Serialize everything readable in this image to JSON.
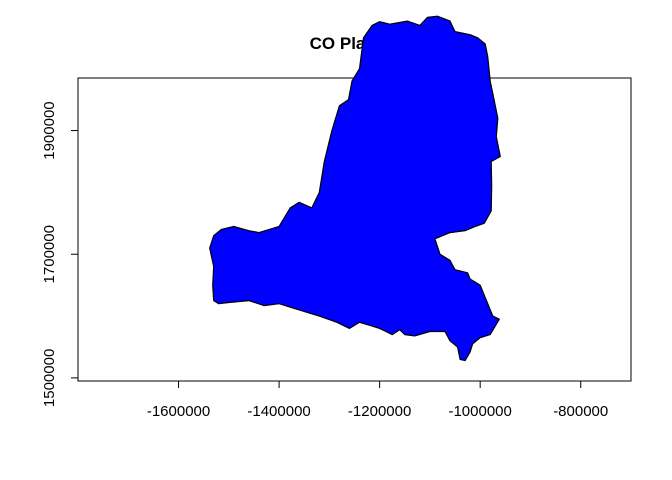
{
  "chart_data": {
    "type": "map",
    "title": "CO Plateau",
    "xlabel": "",
    "ylabel": "",
    "xlim": [
      -1800000,
      -700000
    ],
    "ylim": [
      1495000,
      1985000
    ],
    "x_ticks": [
      -1600000,
      -1400000,
      -1200000,
      -1000000,
      -800000
    ],
    "x_tick_labels": [
      "-1600000",
      "-1400000",
      "-1200000",
      "-1000000",
      "-800000"
    ],
    "y_ticks": [
      1500000,
      1700000,
      1900000
    ],
    "y_tick_labels": [
      "1500000",
      "1700000",
      "1900000"
    ],
    "grid": false,
    "fill_color": "#0000ff",
    "border_color": "#000000",
    "polygon": [
      [
        -1515000,
        1740000
      ],
      [
        -1490000,
        1745000
      ],
      [
        -1460000,
        1738000
      ],
      [
        -1440000,
        1735000
      ],
      [
        -1400000,
        1745000
      ],
      [
        -1378000,
        1775000
      ],
      [
        -1360000,
        1784000
      ],
      [
        -1335000,
        1775000
      ],
      [
        -1320000,
        1800000
      ],
      [
        -1310000,
        1850000
      ],
      [
        -1295000,
        1900000
      ],
      [
        -1280000,
        1940000
      ],
      [
        -1262000,
        1950000
      ],
      [
        -1255000,
        1980000
      ],
      [
        -1240000,
        2000000
      ],
      [
        -1232000,
        2050000
      ],
      [
        -1215000,
        2070000
      ],
      [
        -1200000,
        2076000
      ],
      [
        -1180000,
        2072000
      ],
      [
        -1145000,
        2077000
      ],
      [
        -1120000,
        2070000
      ],
      [
        -1105000,
        2083000
      ],
      [
        -1085000,
        2085000
      ],
      [
        -1060000,
        2077000
      ],
      [
        -1050000,
        2060000
      ],
      [
        -1020000,
        2055000
      ],
      [
        -1005000,
        2050000
      ],
      [
        -990000,
        2040000
      ],
      [
        -985000,
        2020000
      ],
      [
        -980000,
        1980000
      ],
      [
        -975000,
        1960000
      ],
      [
        -965000,
        1920000
      ],
      [
        -968000,
        1890000
      ],
      [
        -960000,
        1858000
      ],
      [
        -978000,
        1850000
      ],
      [
        -977000,
        1810000
      ],
      [
        -978000,
        1770000
      ],
      [
        -992000,
        1750000
      ],
      [
        -1010000,
        1745000
      ],
      [
        -1030000,
        1738000
      ],
      [
        -1060000,
        1735000
      ],
      [
        -1075000,
        1730000
      ],
      [
        -1090000,
        1725000
      ],
      [
        -1080000,
        1700000
      ],
      [
        -1060000,
        1690000
      ],
      [
        -1050000,
        1675000
      ],
      [
        -1025000,
        1670000
      ],
      [
        -1020000,
        1660000
      ],
      [
        -1010000,
        1655000
      ],
      [
        -1000000,
        1650000
      ],
      [
        -990000,
        1630000
      ],
      [
        -975000,
        1600000
      ],
      [
        -962000,
        1595000
      ],
      [
        -980000,
        1570000
      ],
      [
        -1000000,
        1565000
      ],
      [
        -1015000,
        1555000
      ],
      [
        -1020000,
        1542000
      ],
      [
        -1030000,
        1528000
      ],
      [
        -1040000,
        1530000
      ],
      [
        -1045000,
        1550000
      ],
      [
        -1060000,
        1560000
      ],
      [
        -1070000,
        1575000
      ],
      [
        -1100000,
        1575000
      ],
      [
        -1130000,
        1568000
      ],
      [
        -1150000,
        1570000
      ],
      [
        -1160000,
        1578000
      ],
      [
        -1175000,
        1570000
      ],
      [
        -1200000,
        1580000
      ],
      [
        -1220000,
        1585000
      ],
      [
        -1240000,
        1590000
      ],
      [
        -1260000,
        1580000
      ],
      [
        -1285000,
        1590000
      ],
      [
        -1320000,
        1600000
      ],
      [
        -1340000,
        1605000
      ],
      [
        -1360000,
        1610000
      ],
      [
        -1380000,
        1615000
      ],
      [
        -1400000,
        1620000
      ],
      [
        -1430000,
        1617000
      ],
      [
        -1460000,
        1625000
      ],
      [
        -1500000,
        1622000
      ],
      [
        -1520000,
        1620000
      ],
      [
        -1530000,
        1625000
      ],
      [
        -1532000,
        1650000
      ],
      [
        -1530000,
        1680000
      ],
      [
        -1538000,
        1710000
      ],
      [
        -1530000,
        1730000
      ]
    ]
  }
}
